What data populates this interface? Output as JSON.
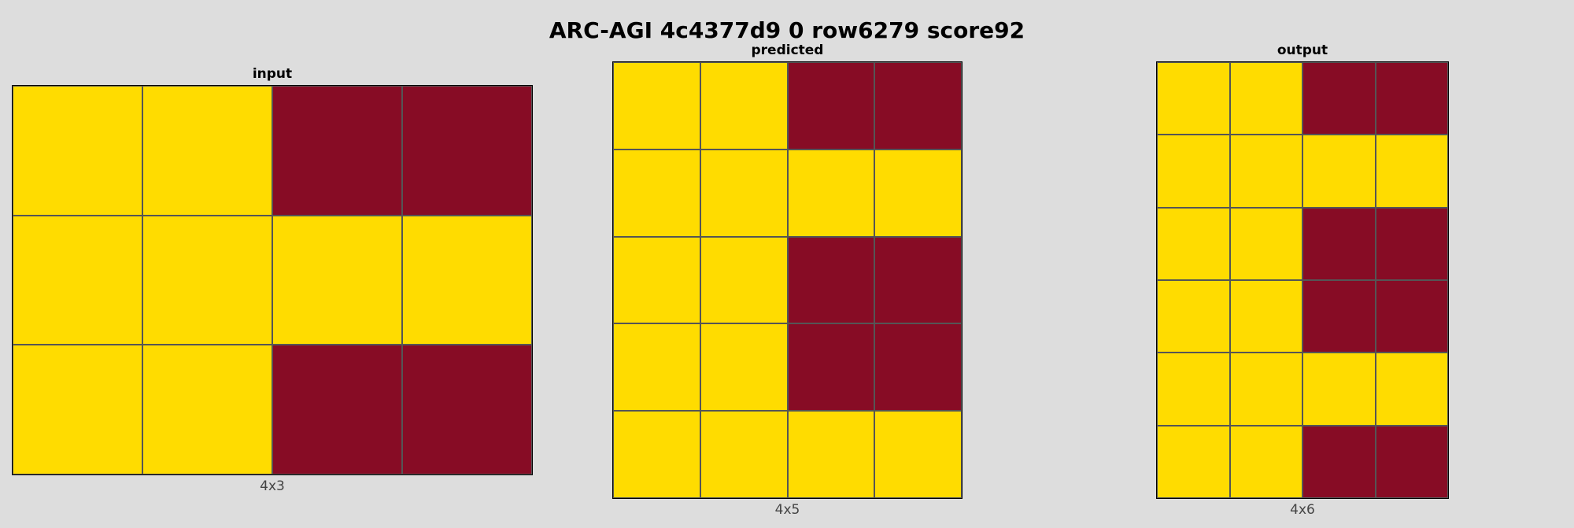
{
  "title": "ARC-AGI 4c4377d9 0 row6279 score92",
  "colors": {
    "4": "#FFDC00",
    "9": "#870C25"
  },
  "panels": [
    {
      "name": "input",
      "label": "input",
      "caption": "4x3",
      "grid": [
        [
          4,
          4,
          9,
          9
        ],
        [
          4,
          4,
          4,
          4
        ],
        [
          4,
          4,
          9,
          9
        ]
      ]
    },
    {
      "name": "predicted",
      "label": "predicted",
      "caption": "4x5",
      "grid": [
        [
          4,
          4,
          9,
          9
        ],
        [
          4,
          4,
          4,
          4
        ],
        [
          4,
          4,
          9,
          9
        ],
        [
          4,
          4,
          9,
          9
        ],
        [
          4,
          4,
          4,
          4
        ]
      ]
    },
    {
      "name": "output",
      "label": "output",
      "caption": "4x6",
      "grid": [
        [
          4,
          4,
          9,
          9
        ],
        [
          4,
          4,
          4,
          4
        ],
        [
          4,
          4,
          9,
          9
        ],
        [
          4,
          4,
          9,
          9
        ],
        [
          4,
          4,
          4,
          4
        ],
        [
          4,
          4,
          9,
          9
        ]
      ]
    }
  ]
}
